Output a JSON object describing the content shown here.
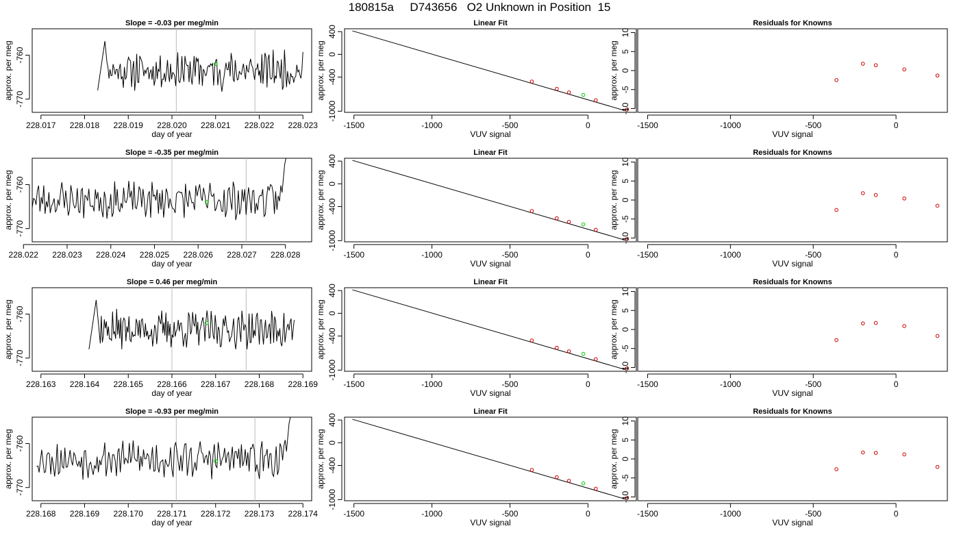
{
  "title": "180815a     D743656   O2 Unknown in Position  15",
  "style": {
    "trace_color": "#000000",
    "marker_known": "#cc0000",
    "marker_unknown": "#00cc00",
    "vline_color": "#bbbbbb",
    "axis_color": "#000000"
  },
  "rows": [
    {
      "time_panel": {
        "title": "Slope =  -0.03  per meg/min",
        "xlabel": "day of year",
        "ylabel": "approx. per meg",
        "xlim": [
          228.0168,
          228.0232
        ],
        "ylim": [
          -773,
          -754
        ],
        "xticks": [
          "228.017",
          "228.018",
          "228.019",
          "228.020",
          "228.021",
          "228.022",
          "228.023"
        ],
        "yticks": [
          "-760",
          "-770"
        ],
        "vlines": [
          228.0201,
          228.0219
        ],
        "unknown_point": [
          228.021,
          -762
        ],
        "trace_start": 228.0183,
        "trace_end": 228.023,
        "trace_entry": "top",
        "trace_exit": "none",
        "trace_seed": 11
      },
      "fit_panel": {
        "title": "Linear Fit",
        "xlabel": "VUV signal",
        "ylabel": "approx. per meg",
        "xlim": [
          -1560,
          310
        ],
        "ylim": [
          -1020,
          450
        ],
        "xticks": [
          "-1500",
          "-1000",
          "-500",
          "0"
        ],
        "yticks": [
          "400",
          "0",
          "-400",
          "-1000"
        ],
        "line": [
          [
            -1510,
            413
          ],
          [
            250,
            -1000
          ]
        ],
        "knowns": [
          [
            -360,
            -478
          ],
          [
            -200,
            -606
          ],
          [
            -122,
            -669
          ],
          [
            50,
            -808
          ],
          [
            250,
            -969
          ]
        ],
        "unknown": [
          -30,
          -714
        ]
      },
      "resid_panel": {
        "title": "Residuals for Knowns",
        "xlabel": "VUV signal",
        "ylabel": "approx. per meg",
        "xlim": [
          -1560,
          310
        ],
        "ylim": [
          -11,
          11
        ],
        "xticks": [
          "-1500",
          "-1000",
          "-500",
          "0"
        ],
        "yticks": [
          "10",
          "5",
          "0",
          "-5",
          "-10"
        ],
        "points": [
          [
            -360,
            -2.5
          ],
          [
            -200,
            1.8
          ],
          [
            -122,
            1.4
          ],
          [
            50,
            0.3
          ],
          [
            250,
            -1.3
          ]
        ]
      }
    },
    {
      "time_panel": {
        "title": "Slope =  -0.35  per meg/min",
        "xlabel": "day of year",
        "ylabel": "approx. per meg",
        "xlim": [
          228.0222,
          228.0286
        ],
        "ylim": [
          -773,
          -754
        ],
        "xticks": [
          "228.022",
          "228.023",
          "228.024",
          "228.025",
          "228.026",
          "228.027",
          "228.028"
        ],
        "yticks": [
          "-760",
          "-770"
        ],
        "vlines": [
          228.0254,
          228.0271
        ],
        "unknown_point": [
          228.0262,
          -764
        ],
        "trace_start": 228.0222,
        "trace_end": 228.0281,
        "trace_entry": "none",
        "trace_exit": "top",
        "trace_seed": 23
      },
      "fit_panel": {
        "title": "Linear Fit",
        "xlabel": "VUV signal",
        "ylabel": "approx. per meg",
        "xlim": [
          -1560,
          310
        ],
        "ylim": [
          -1020,
          450
        ],
        "xticks": [
          "-1500",
          "-1000",
          "-500",
          "0"
        ],
        "yticks": [
          "400",
          "0",
          "-400",
          "-1000"
        ],
        "line": [
          [
            -1510,
            413
          ],
          [
            250,
            -1000
          ]
        ],
        "knowns": [
          [
            -360,
            -478
          ],
          [
            -200,
            -606
          ],
          [
            -122,
            -669
          ],
          [
            50,
            -808
          ],
          [
            250,
            -969
          ]
        ],
        "unknown": [
          -30,
          -714
        ]
      },
      "resid_panel": {
        "title": "Residuals for Knowns",
        "xlabel": "VUV signal",
        "ylabel": "approx. per meg",
        "xlim": [
          -1560,
          310
        ],
        "ylim": [
          -11,
          11
        ],
        "xticks": [
          "-1500",
          "-1000",
          "-500",
          "0"
        ],
        "yticks": [
          "10",
          "5",
          "0",
          "-5",
          "-10"
        ],
        "points": [
          [
            -360,
            -2.6
          ],
          [
            -200,
            1.8
          ],
          [
            -122,
            1.3
          ],
          [
            50,
            0.4
          ],
          [
            250,
            -1.5
          ]
        ]
      }
    },
    {
      "time_panel": {
        "title": "Slope =  0.46  per meg/min",
        "xlabel": "day of year",
        "ylabel": "approx. per meg",
        "xlim": [
          228.1628,
          228.1692
        ],
        "ylim": [
          -773,
          -754
        ],
        "xticks": [
          "228.163",
          "228.164",
          "228.165",
          "228.166",
          "228.167",
          "228.168",
          "228.169"
        ],
        "yticks": [
          "-760",
          "-770"
        ],
        "vlines": [
          228.166,
          228.1677
        ],
        "unknown_point": [
          228.1668,
          -762
        ],
        "trace_start": 228.1641,
        "trace_end": 228.1688,
        "trace_entry": "top",
        "trace_exit": "none",
        "trace_seed": 37
      },
      "fit_panel": {
        "title": "Linear Fit",
        "xlabel": "VUV signal",
        "ylabel": "approx. per meg",
        "xlim": [
          -1560,
          310
        ],
        "ylim": [
          -1020,
          450
        ],
        "xticks": [
          "-1500",
          "-1000",
          "-500",
          "0"
        ],
        "yticks": [
          "400",
          "0",
          "-400",
          "-1000"
        ],
        "line": [
          [
            -1510,
            413
          ],
          [
            250,
            -1000
          ]
        ],
        "knowns": [
          [
            -360,
            -478
          ],
          [
            -200,
            -606
          ],
          [
            -122,
            -669
          ],
          [
            50,
            -808
          ],
          [
            250,
            -969
          ]
        ],
        "unknown": [
          -30,
          -714
        ]
      },
      "resid_panel": {
        "title": "Residuals for Knowns",
        "xlabel": "VUV signal",
        "ylabel": "approx. per meg",
        "xlim": [
          -1560,
          310
        ],
        "ylim": [
          -11,
          11
        ],
        "xticks": [
          "-1500",
          "-1000",
          "-500",
          "0"
        ],
        "yticks": [
          "10",
          "5",
          "0",
          "-5",
          "-10"
        ],
        "points": [
          [
            -360,
            -2.8
          ],
          [
            -200,
            1.6
          ],
          [
            -122,
            1.7
          ],
          [
            50,
            0.9
          ],
          [
            250,
            -1.7
          ]
        ]
      }
    },
    {
      "time_panel": {
        "title": "Slope =  -0.93  per meg/min",
        "xlabel": "day of year",
        "ylabel": "approx. per meg",
        "xlim": [
          228.1678,
          228.1742
        ],
        "ylim": [
          -773,
          -754
        ],
        "xticks": [
          "228.168",
          "228.169",
          "228.170",
          "228.171",
          "228.172",
          "228.173",
          "228.174"
        ],
        "yticks": [
          "-760",
          "-770"
        ],
        "vlines": [
          228.1711,
          228.1729
        ],
        "unknown_point": [
          228.172,
          -764
        ],
        "trace_start": 228.1679,
        "trace_end": 228.1738,
        "trace_entry": "none",
        "trace_exit": "top",
        "trace_seed": 53
      },
      "fit_panel": {
        "title": "Linear Fit",
        "xlabel": "VUV signal",
        "ylabel": "approx. per meg",
        "xlim": [
          -1560,
          310
        ],
        "ylim": [
          -1020,
          450
        ],
        "xticks": [
          "-1500",
          "-1000",
          "-500",
          "0"
        ],
        "yticks": [
          "400",
          "0",
          "-400",
          "-1000"
        ],
        "line": [
          [
            -1510,
            413
          ],
          [
            250,
            -1000
          ]
        ],
        "knowns": [
          [
            -360,
            -478
          ],
          [
            -200,
            -606
          ],
          [
            -122,
            -669
          ],
          [
            50,
            -808
          ],
          [
            250,
            -969
          ]
        ],
        "unknown": [
          -30,
          -714
        ]
      },
      "resid_panel": {
        "title": "Residuals for Knowns",
        "xlabel": "VUV signal",
        "ylabel": "approx. per meg",
        "xlim": [
          -1560,
          310
        ],
        "ylim": [
          -11,
          11
        ],
        "xticks": [
          "-1500",
          "-1000",
          "-500",
          "0"
        ],
        "yticks": [
          "10",
          "5",
          "0",
          "-5",
          "-10"
        ],
        "points": [
          [
            -360,
            -2.7
          ],
          [
            -200,
            1.7
          ],
          [
            -122,
            1.6
          ],
          [
            50,
            1.2
          ],
          [
            250,
            -2.1
          ]
        ]
      }
    }
  ],
  "chart_data": [
    {
      "type": "line",
      "title": "Slope =  -0.03  per meg/min",
      "xlabel": "day of year",
      "ylabel": "approx. per meg",
      "xlim": [
        228.0168,
        228.0232
      ],
      "ylim": [
        -773,
        -754
      ]
    },
    {
      "type": "scatter",
      "title": "Linear Fit",
      "xlabel": "VUV signal",
      "ylabel": "approx. per meg",
      "x": [
        -360,
        -200,
        -122,
        50,
        250
      ],
      "y": [
        -478,
        -606,
        -669,
        -808,
        -969
      ]
    },
    {
      "type": "scatter",
      "title": "Residuals for Knowns",
      "xlabel": "VUV signal",
      "ylabel": "approx. per meg",
      "x": [
        -360,
        -200,
        -122,
        50,
        250
      ],
      "y": [
        -2.5,
        1.8,
        1.4,
        0.3,
        -1.3
      ]
    },
    {
      "type": "line",
      "title": "Slope =  -0.35  per meg/min",
      "xlabel": "day of year",
      "ylabel": "approx. per meg",
      "xlim": [
        228.0222,
        228.0286
      ],
      "ylim": [
        -773,
        -754
      ]
    },
    {
      "type": "scatter",
      "title": "Linear Fit",
      "xlabel": "VUV signal",
      "ylabel": "approx. per meg",
      "x": [
        -360,
        -200,
        -122,
        50,
        250
      ],
      "y": [
        -478,
        -606,
        -669,
        -808,
        -969
      ]
    },
    {
      "type": "scatter",
      "title": "Residuals for Knowns",
      "xlabel": "VUV signal",
      "ylabel": "approx. per meg",
      "x": [
        -360,
        -200,
        -122,
        50,
        250
      ],
      "y": [
        -2.6,
        1.8,
        1.3,
        0.4,
        -1.5
      ]
    },
    {
      "type": "line",
      "title": "Slope =  0.46  per meg/min",
      "xlabel": "day of year",
      "ylabel": "approx. per meg",
      "xlim": [
        228.1628,
        228.1692
      ],
      "ylim": [
        -773,
        -754
      ]
    },
    {
      "type": "scatter",
      "title": "Linear Fit",
      "xlabel": "VUV signal",
      "ylabel": "approx. per meg",
      "x": [
        -360,
        -200,
        -122,
        50,
        250
      ],
      "y": [
        -478,
        -606,
        -669,
        -808,
        -969
      ]
    },
    {
      "type": "scatter",
      "title": "Residuals for Knowns",
      "xlabel": "VUV signal",
      "ylabel": "approx. per meg",
      "x": [
        -360,
        -200,
        -122,
        50,
        250
      ],
      "y": [
        -2.8,
        1.6,
        1.7,
        0.9,
        -1.7
      ]
    },
    {
      "type": "line",
      "title": "Slope =  -0.93  per meg/min",
      "xlabel": "day of year",
      "ylabel": "approx. per meg",
      "xlim": [
        228.1678,
        228.1742
      ],
      "ylim": [
        -773,
        -754
      ]
    },
    {
      "type": "scatter",
      "title": "Linear Fit",
      "xlabel": "VUV signal",
      "ylabel": "approx. per meg",
      "x": [
        -360,
        -200,
        -122,
        50,
        250
      ],
      "y": [
        -478,
        -606,
        -669,
        -808,
        -969
      ]
    },
    {
      "type": "scatter",
      "title": "Residuals for Knowns",
      "xlabel": "VUV signal",
      "ylabel": "approx. per meg",
      "x": [
        -360,
        -200,
        -122,
        50,
        250
      ],
      "y": [
        -2.7,
        1.7,
        1.6,
        1.2,
        -2.1
      ]
    }
  ]
}
